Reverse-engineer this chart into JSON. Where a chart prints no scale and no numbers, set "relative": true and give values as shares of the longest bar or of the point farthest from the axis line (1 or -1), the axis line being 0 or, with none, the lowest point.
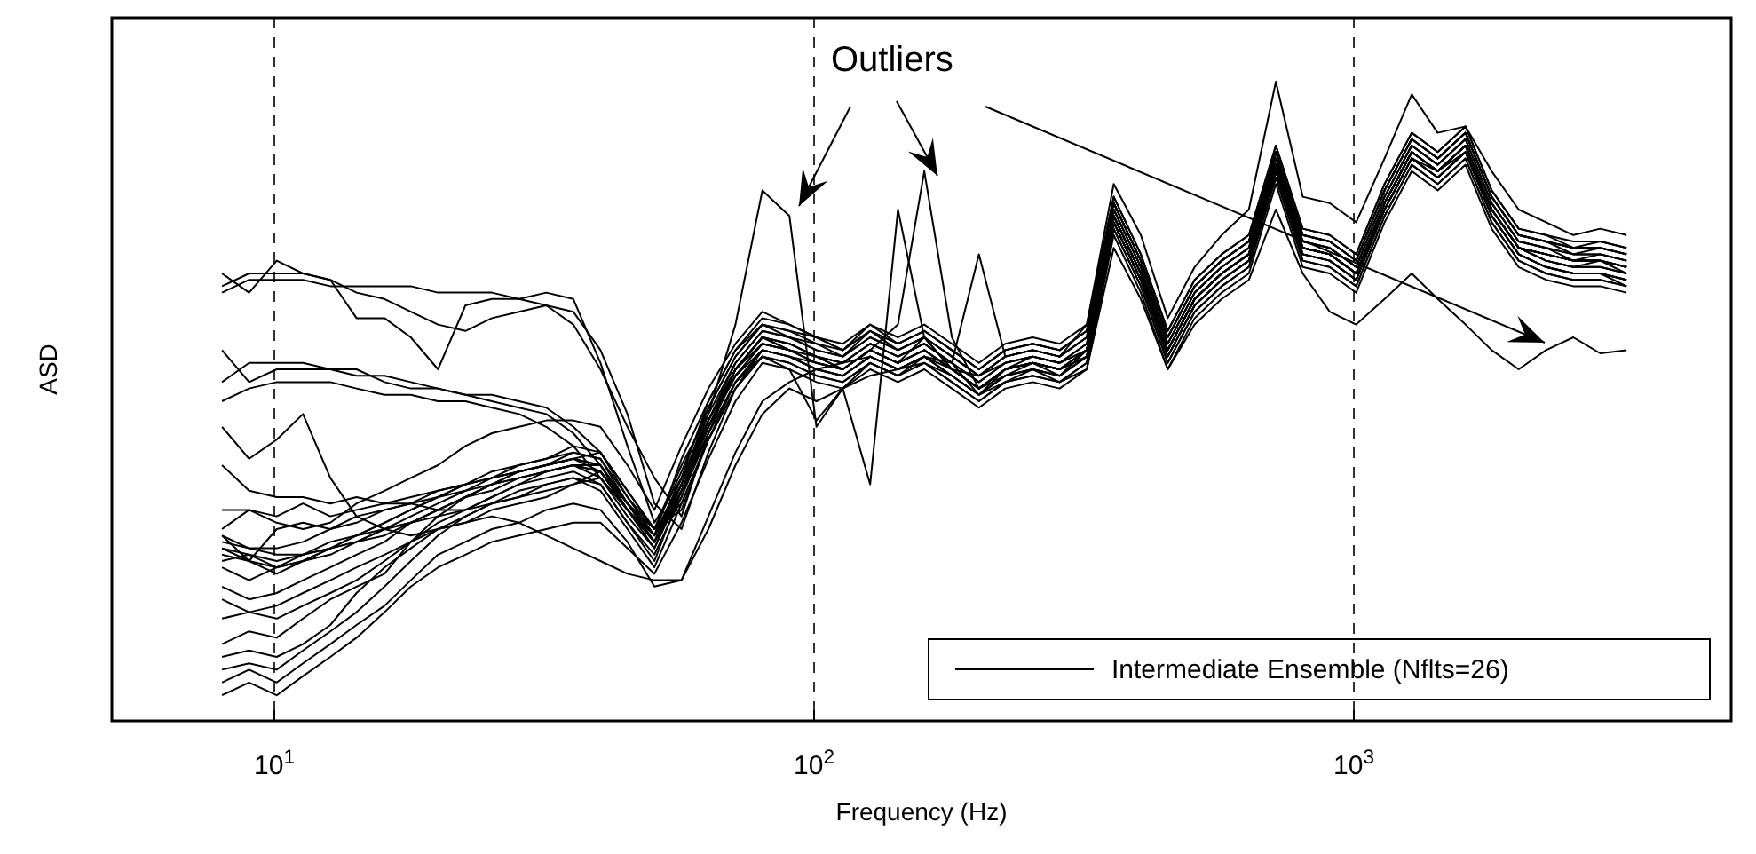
{
  "chart_data": {
    "type": "line",
    "relative": true,
    "log": "x",
    "grid": "x",
    "legend": "bottom right",
    "xlabel": "Frequency (Hz)",
    "ylabel": "ASD",
    "annotations": [
      "Outliers"
    ],
    "xlim": [
      5,
      5000
    ],
    "xticks": [
      {
        "value": 10,
        "label": "10$^{1}$"
      },
      {
        "value": 100,
        "label": "10$^{2}$"
      },
      {
        "value": 1000,
        "label": "10$^{3}$"
      }
    ],
    "x": [
      8.0,
      8.98,
      10.1,
      11.3,
      12.7,
      14.2,
      16.0,
      17.9,
      20.1,
      22.6,
      25.3,
      28.4,
      31.9,
      35.8,
      40.2,
      45.1,
      50.6,
      56.8,
      63.7,
      71.5,
      80.2,
      90.0,
      101,
      113,
      127,
      143,
      160,
      180,
      202,
      226,
      254,
      285,
      320,
      359,
      403,
      452,
      507,
      569,
      639,
      717,
      804,
      902,
      1010,
      1140,
      1280,
      1430,
      1610,
      1800,
      2020,
      2270,
      2550,
      2860,
      3200
    ],
    "series": [
      {
        "name": "Intermediate Ensemble (Nflts=26)",
        "color": "#000000",
        "values": [
          0.67,
          0.69,
          0.69,
          0.69,
          0.68,
          0.68,
          0.68,
          0.68,
          0.67,
          0.67,
          0.67,
          0.66,
          0.65,
          0.62,
          0.55,
          0.46,
          0.38,
          0.32,
          0.45,
          0.55,
          0.6,
          0.58,
          0.57,
          0.55,
          0.58,
          0.56,
          0.6,
          0.55,
          0.52,
          0.55,
          0.57,
          0.56,
          0.58,
          0.79,
          0.7,
          0.58,
          0.66,
          0.7,
          0.73,
          0.87,
          0.74,
          0.73,
          0.7,
          0.81,
          0.89,
          0.86,
          0.9,
          0.8,
          0.74,
          0.72,
          0.71,
          0.72,
          0.7
        ]
      },
      {
        "color": "#000000",
        "values": [
          0.68,
          0.7,
          0.7,
          0.7,
          0.69,
          0.63,
          0.63,
          0.6,
          0.55,
          0.65,
          0.66,
          0.66,
          0.67,
          0.66,
          0.56,
          0.43,
          0.31,
          0.38,
          0.5,
          0.58,
          0.62,
          0.6,
          0.59,
          0.57,
          0.61,
          0.58,
          0.6,
          0.57,
          0.54,
          0.57,
          0.58,
          0.57,
          0.6,
          0.81,
          0.72,
          0.6,
          0.68,
          0.72,
          0.75,
          0.89,
          0.76,
          0.75,
          0.72,
          0.83,
          0.91,
          0.88,
          0.92,
          0.82,
          0.76,
          0.75,
          0.74,
          0.74,
          0.73
        ]
      },
      {
        "color": "#000000",
        "values": [
          0.7,
          0.67,
          0.72,
          0.7,
          0.69,
          0.67,
          0.66,
          0.64,
          0.62,
          0.61,
          0.63,
          0.64,
          0.65,
          0.64,
          0.58,
          0.48,
          0.34,
          0.3,
          0.42,
          0.52,
          0.58,
          0.57,
          0.55,
          0.56,
          0.57,
          0.55,
          0.57,
          0.56,
          0.51,
          0.55,
          0.56,
          0.55,
          0.57,
          0.78,
          0.69,
          0.57,
          0.65,
          0.69,
          0.72,
          0.86,
          0.73,
          0.72,
          0.69,
          0.8,
          0.88,
          0.85,
          0.89,
          0.79,
          0.73,
          0.71,
          0.7,
          0.7,
          0.68
        ]
      },
      {
        "color": "#000000",
        "values": [
          0.53,
          0.56,
          0.56,
          0.56,
          0.55,
          0.55,
          0.53,
          0.52,
          0.52,
          0.51,
          0.51,
          0.5,
          0.49,
          0.46,
          0.42,
          0.36,
          0.3,
          0.33,
          0.44,
          0.53,
          0.58,
          0.57,
          0.56,
          0.55,
          0.58,
          0.56,
          0.58,
          0.55,
          0.52,
          0.55,
          0.56,
          0.55,
          0.58,
          0.8,
          0.71,
          0.59,
          0.67,
          0.71,
          0.74,
          0.88,
          0.75,
          0.74,
          0.71,
          0.82,
          0.9,
          0.87,
          0.91,
          0.81,
          0.75,
          0.74,
          0.73,
          0.73,
          0.72
        ]
      },
      {
        "color": "#000000",
        "values": [
          0.58,
          0.53,
          0.55,
          0.55,
          0.55,
          0.54,
          0.54,
          0.53,
          0.52,
          0.51,
          0.5,
          0.49,
          0.48,
          0.45,
          0.4,
          0.34,
          0.28,
          0.35,
          0.47,
          0.56,
          0.61,
          0.6,
          0.58,
          0.57,
          0.6,
          0.58,
          0.6,
          0.57,
          0.54,
          0.57,
          0.58,
          0.57,
          0.6,
          0.81,
          0.72,
          0.6,
          0.68,
          0.72,
          0.75,
          0.89,
          0.76,
          0.75,
          0.72,
          0.83,
          0.91,
          0.88,
          0.92,
          0.82,
          0.76,
          0.75,
          0.73,
          0.74,
          0.73
        ]
      },
      {
        "color": "#000000",
        "values": [
          0.5,
          0.52,
          0.53,
          0.53,
          0.53,
          0.52,
          0.51,
          0.51,
          0.5,
          0.5,
          0.49,
          0.48,
          0.46,
          0.43,
          0.38,
          0.33,
          0.29,
          0.37,
          0.49,
          0.57,
          0.62,
          0.61,
          0.6,
          0.58,
          0.61,
          0.59,
          0.61,
          0.58,
          0.55,
          0.58,
          0.59,
          0.58,
          0.61,
          0.82,
          0.73,
          0.61,
          0.69,
          0.73,
          0.76,
          0.9,
          0.77,
          0.76,
          0.73,
          0.84,
          0.92,
          0.89,
          0.93,
          0.83,
          0.77,
          0.76,
          0.74,
          0.75,
          0.74
        ]
      },
      {
        "color": "#000000",
        "values": [
          0.46,
          0.41,
          0.44,
          0.48,
          0.38,
          0.32,
          0.3,
          0.29,
          0.3,
          0.31,
          0.33,
          0.34,
          0.35,
          0.37,
          0.38,
          0.33,
          0.28,
          0.36,
          0.46,
          0.55,
          0.6,
          0.59,
          0.57,
          0.56,
          0.59,
          0.57,
          0.59,
          0.56,
          0.53,
          0.56,
          0.57,
          0.56,
          0.59,
          0.8,
          0.71,
          0.59,
          0.67,
          0.71,
          0.74,
          0.88,
          0.75,
          0.74,
          0.71,
          0.82,
          0.9,
          0.87,
          0.91,
          0.81,
          0.75,
          0.74,
          0.72,
          0.73,
          0.72
        ]
      },
      {
        "color": "#000000",
        "values": [
          0.4,
          0.36,
          0.35,
          0.35,
          0.34,
          0.35,
          0.34,
          0.34,
          0.33,
          0.33,
          0.34,
          0.35,
          0.36,
          0.37,
          0.39,
          0.34,
          0.3,
          0.4,
          0.48,
          0.56,
          0.61,
          0.6,
          0.58,
          0.57,
          0.6,
          0.58,
          0.6,
          0.57,
          0.54,
          0.57,
          0.58,
          0.57,
          0.6,
          0.79,
          0.7,
          0.58,
          0.66,
          0.7,
          0.73,
          0.87,
          0.74,
          0.73,
          0.7,
          0.81,
          0.89,
          0.86,
          0.9,
          0.8,
          0.74,
          0.73,
          0.72,
          0.72,
          0.71
        ]
      },
      {
        "color": "#000000",
        "values": [
          0.33,
          0.33,
          0.32,
          0.34,
          0.32,
          0.33,
          0.34,
          0.35,
          0.36,
          0.37,
          0.38,
          0.39,
          0.4,
          0.41,
          0.42,
          0.35,
          0.29,
          0.41,
          0.5,
          0.58,
          0.63,
          0.62,
          0.6,
          0.59,
          0.62,
          0.6,
          0.62,
          0.59,
          0.56,
          0.59,
          0.6,
          0.59,
          0.62,
          0.82,
          0.73,
          0.61,
          0.69,
          0.73,
          0.76,
          0.9,
          0.77,
          0.76,
          0.73,
          0.84,
          0.92,
          0.89,
          0.93,
          0.83,
          0.77,
          0.76,
          0.75,
          0.75,
          0.74
        ]
      },
      {
        "color": "#000000",
        "values": [
          0.3,
          0.33,
          0.31,
          0.3,
          0.31,
          0.34,
          0.36,
          0.38,
          0.4,
          0.43,
          0.45,
          0.46,
          0.47,
          0.47,
          0.46,
          0.4,
          0.33,
          0.43,
          0.52,
          0.59,
          0.64,
          0.62,
          0.6,
          0.58,
          0.62,
          0.59,
          0.61,
          0.58,
          0.55,
          0.58,
          0.59,
          0.58,
          0.61,
          0.81,
          0.72,
          0.6,
          0.68,
          0.72,
          0.75,
          0.89,
          0.76,
          0.75,
          0.72,
          0.83,
          0.91,
          0.88,
          0.92,
          0.82,
          0.76,
          0.75,
          0.74,
          0.74,
          0.73
        ]
      },
      {
        "color": "#000000",
        "values": [
          0.29,
          0.25,
          0.3,
          0.31,
          0.3,
          0.32,
          0.33,
          0.34,
          0.35,
          0.37,
          0.39,
          0.4,
          0.41,
          0.42,
          0.41,
          0.35,
          0.3,
          0.34,
          0.44,
          0.52,
          0.57,
          0.56,
          0.54,
          0.53,
          0.56,
          0.54,
          0.56,
          0.53,
          0.5,
          0.53,
          0.54,
          0.53,
          0.56,
          0.77,
          0.68,
          0.56,
          0.64,
          0.68,
          0.71,
          0.85,
          0.72,
          0.71,
          0.68,
          0.79,
          0.87,
          0.84,
          0.88,
          0.78,
          0.72,
          0.7,
          0.69,
          0.69,
          0.68
        ]
      },
      {
        "color": "#000000",
        "values": [
          0.29,
          0.27,
          0.26,
          0.26,
          0.28,
          0.29,
          0.3,
          0.31,
          0.33,
          0.35,
          0.37,
          0.39,
          0.4,
          0.42,
          0.41,
          0.34,
          0.28,
          0.38,
          0.47,
          0.55,
          0.59,
          0.58,
          0.56,
          0.55,
          0.58,
          0.56,
          0.58,
          0.55,
          0.52,
          0.55,
          0.56,
          0.55,
          0.58,
          0.79,
          0.7,
          0.58,
          0.66,
          0.7,
          0.73,
          0.87,
          0.74,
          0.73,
          0.7,
          0.81,
          0.89,
          0.86,
          0.9,
          0.8,
          0.74,
          0.73,
          0.72,
          0.72,
          0.71
        ]
      },
      {
        "color": "#000000",
        "values": [
          0.27,
          0.26,
          0.24,
          0.25,
          0.27,
          0.28,
          0.3,
          0.32,
          0.34,
          0.36,
          0.38,
          0.4,
          0.41,
          0.43,
          0.42,
          0.36,
          0.3,
          0.39,
          0.49,
          0.57,
          0.62,
          0.61,
          0.59,
          0.58,
          0.61,
          0.59,
          0.61,
          0.58,
          0.55,
          0.58,
          0.59,
          0.58,
          0.61,
          0.81,
          0.72,
          0.6,
          0.68,
          0.72,
          0.75,
          0.89,
          0.76,
          0.75,
          0.72,
          0.83,
          0.91,
          0.88,
          0.92,
          0.82,
          0.76,
          0.75,
          0.74,
          0.74,
          0.73
        ]
      },
      {
        "color": "#000000",
        "values": [
          0.25,
          0.26,
          0.25,
          0.26,
          0.27,
          0.28,
          0.29,
          0.31,
          0.32,
          0.33,
          0.35,
          0.37,
          0.39,
          0.4,
          0.4,
          0.34,
          0.29,
          0.37,
          0.46,
          0.54,
          0.58,
          0.57,
          0.55,
          0.54,
          0.57,
          0.55,
          0.57,
          0.54,
          0.51,
          0.54,
          0.55,
          0.54,
          0.57,
          0.78,
          0.69,
          0.57,
          0.65,
          0.69,
          0.72,
          0.86,
          0.73,
          0.72,
          0.69,
          0.8,
          0.88,
          0.85,
          0.89,
          0.79,
          0.73,
          0.71,
          0.7,
          0.7,
          0.69
        ]
      },
      {
        "color": "#000000",
        "values": [
          0.28,
          0.27,
          0.27,
          0.28,
          0.3,
          0.31,
          0.33,
          0.34,
          0.36,
          0.37,
          0.38,
          0.39,
          0.4,
          0.41,
          0.39,
          0.33,
          0.28,
          0.37,
          0.48,
          0.62,
          0.83,
          0.79,
          0.46,
          0.52,
          0.56,
          0.54,
          0.57,
          0.55,
          0.52,
          0.54,
          0.56,
          0.55,
          0.57,
          0.78,
          0.69,
          0.58,
          0.66,
          0.7,
          0.73,
          0.86,
          0.74,
          0.73,
          0.7,
          0.8,
          0.88,
          0.86,
          0.89,
          0.8,
          0.74,
          0.72,
          0.71,
          0.71,
          0.7
        ]
      },
      {
        "color": "#000000",
        "values": [
          0.27,
          0.25,
          0.24,
          0.26,
          0.27,
          0.29,
          0.31,
          0.33,
          0.35,
          0.37,
          0.38,
          0.39,
          0.4,
          0.41,
          0.4,
          0.34,
          0.29,
          0.38,
          0.47,
          0.55,
          0.6,
          0.58,
          0.57,
          0.55,
          0.58,
          0.62,
          0.86,
          0.6,
          0.52,
          0.55,
          0.56,
          0.54,
          0.58,
          0.79,
          0.7,
          0.58,
          0.66,
          0.7,
          0.73,
          0.87,
          0.74,
          0.73,
          0.7,
          0.81,
          0.89,
          0.86,
          0.9,
          0.8,
          0.74,
          0.73,
          0.72,
          0.72,
          0.71
        ]
      },
      {
        "color": "#000000",
        "values": [
          0.24,
          0.22,
          0.24,
          0.25,
          0.26,
          0.28,
          0.3,
          0.31,
          0.33,
          0.35,
          0.36,
          0.38,
          0.39,
          0.4,
          0.39,
          0.33,
          0.28,
          0.36,
          0.45,
          0.53,
          0.57,
          0.55,
          0.47,
          0.52,
          0.37,
          0.8,
          0.6,
          0.55,
          0.54,
          0.56,
          0.57,
          0.56,
          0.58,
          0.78,
          0.69,
          0.58,
          0.66,
          0.7,
          0.73,
          0.87,
          0.74,
          0.73,
          0.7,
          0.81,
          0.89,
          0.86,
          0.9,
          0.8,
          0.74,
          0.72,
          0.71,
          0.71,
          0.7
        ]
      },
      {
        "color": "#000000",
        "values": [
          0.26,
          0.25,
          0.23,
          0.25,
          0.27,
          0.29,
          0.31,
          0.33,
          0.35,
          0.36,
          0.37,
          0.38,
          0.39,
          0.4,
          0.39,
          0.33,
          0.28,
          0.37,
          0.46,
          0.55,
          0.6,
          0.59,
          0.57,
          0.56,
          0.59,
          0.57,
          0.59,
          0.56,
          0.73,
          0.57,
          0.58,
          0.57,
          0.62,
          0.84,
          0.76,
          0.63,
          0.71,
          0.76,
          0.8,
          1.0,
          0.82,
          0.81,
          0.78,
          0.88,
          0.98,
          0.92,
          0.93,
          0.86,
          0.8,
          0.78,
          0.76,
          0.77,
          0.76
        ]
      },
      {
        "color": "#000000",
        "values": [
          0.21,
          0.19,
          0.2,
          0.22,
          0.24,
          0.26,
          0.28,
          0.31,
          0.33,
          0.35,
          0.37,
          0.39,
          0.4,
          0.41,
          0.4,
          0.33,
          0.27,
          0.36,
          0.46,
          0.54,
          0.59,
          0.58,
          0.56,
          0.55,
          0.58,
          0.56,
          0.58,
          0.55,
          0.52,
          0.55,
          0.56,
          0.55,
          0.58,
          0.79,
          0.7,
          0.58,
          0.66,
          0.7,
          0.73,
          0.87,
          0.74,
          0.73,
          0.7,
          0.81,
          0.89,
          0.86,
          0.9,
          0.8,
          0.74,
          0.73,
          0.72,
          0.72,
          0.71
        ]
      },
      {
        "color": "#000000",
        "values": [
          0.19,
          0.17,
          0.18,
          0.2,
          0.22,
          0.24,
          0.26,
          0.28,
          0.3,
          0.31,
          0.32,
          0.31,
          0.29,
          0.27,
          0.25,
          0.23,
          0.22,
          0.22,
          0.3,
          0.4,
          0.48,
          0.52,
          0.5,
          0.52,
          0.54,
          0.55,
          0.56,
          0.54,
          0.51,
          0.53,
          0.55,
          0.53,
          0.55,
          0.74,
          0.66,
          0.55,
          0.62,
          0.66,
          0.69,
          0.8,
          0.7,
          0.64,
          0.62,
          0.66,
          0.7,
          0.66,
          0.62,
          0.58,
          0.55,
          0.58,
          0.6,
          0.575,
          0.58
        ]
      },
      {
        "color": "#000000",
        "values": [
          0.16,
          0.17,
          0.16,
          0.18,
          0.2,
          0.22,
          0.25,
          0.28,
          0.32,
          0.35,
          0.37,
          0.38,
          0.39,
          0.4,
          0.38,
          0.32,
          0.27,
          0.37,
          0.47,
          0.55,
          0.6,
          0.59,
          0.57,
          0.56,
          0.59,
          0.57,
          0.59,
          0.56,
          0.53,
          0.56,
          0.57,
          0.56,
          0.59,
          0.8,
          0.71,
          0.59,
          0.67,
          0.71,
          0.74,
          0.88,
          0.75,
          0.74,
          0.71,
          0.82,
          0.9,
          0.87,
          0.91,
          0.81,
          0.75,
          0.74,
          0.73,
          0.73,
          0.72
        ]
      },
      {
        "color": "#000000",
        "values": [
          0.12,
          0.14,
          0.13,
          0.16,
          0.19,
          0.21,
          0.23,
          0.28,
          0.31,
          0.33,
          0.35,
          0.37,
          0.38,
          0.39,
          0.37,
          0.31,
          0.26,
          0.35,
          0.45,
          0.53,
          0.58,
          0.57,
          0.55,
          0.54,
          0.57,
          0.55,
          0.57,
          0.54,
          0.51,
          0.54,
          0.55,
          0.54,
          0.57,
          0.78,
          0.69,
          0.57,
          0.65,
          0.69,
          0.72,
          0.86,
          0.73,
          0.72,
          0.69,
          0.8,
          0.88,
          0.85,
          0.89,
          0.79,
          0.73,
          0.71,
          0.7,
          0.7,
          0.69
        ]
      },
      {
        "color": "#000000",
        "values": [
          0.08,
          0.09,
          0.08,
          0.11,
          0.14,
          0.17,
          0.21,
          0.25,
          0.29,
          0.32,
          0.34,
          0.35,
          0.37,
          0.38,
          0.37,
          0.31,
          0.25,
          0.36,
          0.46,
          0.54,
          0.59,
          0.58,
          0.56,
          0.55,
          0.58,
          0.56,
          0.58,
          0.55,
          0.52,
          0.55,
          0.56,
          0.55,
          0.58,
          0.79,
          0.7,
          0.58,
          0.66,
          0.7,
          0.73,
          0.87,
          0.74,
          0.73,
          0.7,
          0.81,
          0.89,
          0.86,
          0.9,
          0.8,
          0.74,
          0.73,
          0.72,
          0.72,
          0.71
        ]
      },
      {
        "color": "#000000",
        "values": [
          0.1,
          0.11,
          0.1,
          0.12,
          0.15,
          0.2,
          0.24,
          0.27,
          0.3,
          0.32,
          0.34,
          0.36,
          0.37,
          0.38,
          0.36,
          0.3,
          0.24,
          0.34,
          0.44,
          0.52,
          0.57,
          0.56,
          0.54,
          0.53,
          0.56,
          0.54,
          0.56,
          0.53,
          0.5,
          0.53,
          0.54,
          0.53,
          0.56,
          0.77,
          0.68,
          0.56,
          0.64,
          0.68,
          0.71,
          0.85,
          0.72,
          0.71,
          0.68,
          0.79,
          0.87,
          0.84,
          0.88,
          0.78,
          0.72,
          0.7,
          0.69,
          0.69,
          0.68
        ]
      },
      {
        "color": "#000000",
        "values": [
          0.06,
          0.08,
          0.06,
          0.09,
          0.12,
          0.15,
          0.18,
          0.22,
          0.26,
          0.28,
          0.3,
          0.31,
          0.33,
          0.34,
          0.33,
          0.28,
          0.21,
          0.22,
          0.32,
          0.42,
          0.5,
          0.53,
          0.55,
          0.54,
          0.57,
          0.55,
          0.57,
          0.54,
          0.51,
          0.54,
          0.55,
          0.54,
          0.57,
          0.78,
          0.69,
          0.57,
          0.65,
          0.69,
          0.72,
          0.86,
          0.73,
          0.72,
          0.69,
          0.8,
          0.88,
          0.85,
          0.89,
          0.79,
          0.73,
          0.71,
          0.7,
          0.7,
          0.69
        ]
      },
      {
        "color": "#000000",
        "values": [
          0.04,
          0.06,
          0.04,
          0.07,
          0.1,
          0.13,
          0.17,
          0.21,
          0.24,
          0.26,
          0.28,
          0.29,
          0.3,
          0.31,
          0.31,
          0.27,
          0.23,
          0.31,
          0.41,
          0.5,
          0.56,
          0.55,
          0.53,
          0.52,
          0.55,
          0.53,
          0.55,
          0.52,
          0.49,
          0.52,
          0.53,
          0.52,
          0.55,
          0.76,
          0.67,
          0.55,
          0.63,
          0.67,
          0.7,
          0.84,
          0.71,
          0.7,
          0.67,
          0.78,
          0.86,
          0.83,
          0.87,
          0.77,
          0.71,
          0.69,
          0.68,
          0.68,
          0.67
        ]
      }
    ]
  }
}
